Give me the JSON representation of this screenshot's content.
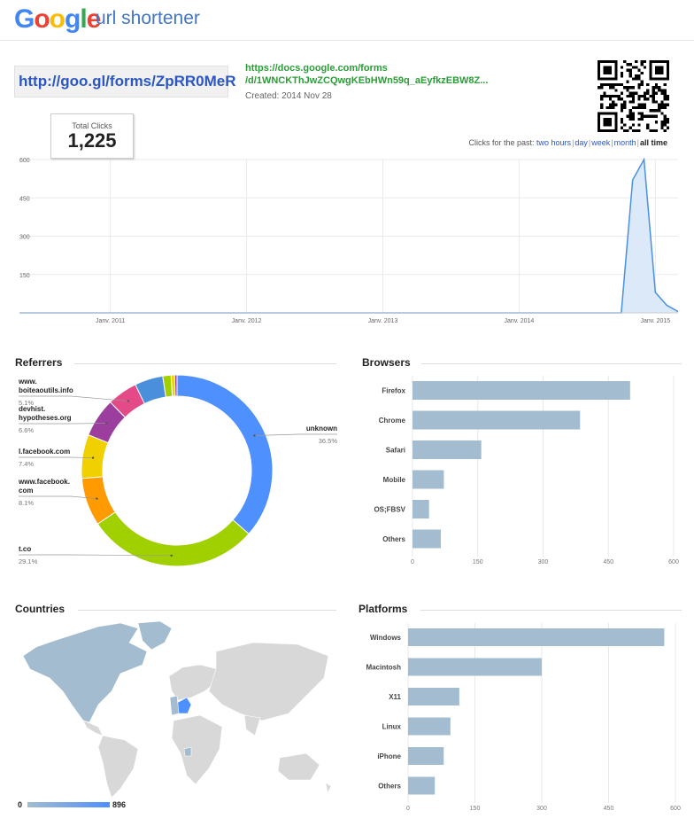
{
  "header": {
    "logo": "Google",
    "product": "url shortener"
  },
  "link": {
    "short_url": "http://goo.gl/forms/ZpRR0MeR",
    "long_url_line1": "https://docs.google.com/forms",
    "long_url_line2": "/d/1WNCKThJwZCQwgKEbHWn59q_aEyfkzEBW8Z...",
    "created": "Created: 2014 Nov 28",
    "qr_icon": "qr-code-icon"
  },
  "total": {
    "label": "Total Clicks",
    "value": "1,225"
  },
  "period": {
    "prefix": "Clicks for the past:",
    "options": [
      "two hours",
      "day",
      "week",
      "month",
      "all time"
    ],
    "active": "all time"
  },
  "sections": {
    "referrers": "Referrers",
    "browsers": "Browsers",
    "countries": "Countries",
    "platforms": "Platforms"
  },
  "chart_data": [
    {
      "type": "area",
      "x_ticks": [
        "Janv. 2011",
        "Janv. 2012",
        "Janv. 2013",
        "Janv. 2014",
        "Janv. 2015"
      ],
      "y_ticks": [
        "600",
        "450",
        "300",
        "150"
      ],
      "ylim": [
        0,
        600
      ],
      "series": [
        {
          "points": [
            {
              "x": "2010-05",
              "y": 0
            },
            {
              "x": "2014-09",
              "y": 0
            },
            {
              "x": "2014-10",
              "y": 0
            },
            {
              "x": "2014-11",
              "y": 520
            },
            {
              "x": "2014-12",
              "y": 600
            },
            {
              "x": "2015-01",
              "y": 80
            },
            {
              "x": "2015-02",
              "y": 30
            },
            {
              "x": "2015-03",
              "y": 5
            }
          ]
        }
      ],
      "color": "#4a90e2"
    },
    {
      "type": "pie",
      "title": "Referrers",
      "slices": [
        {
          "label": "unknown",
          "pct": "36.5%",
          "value": 36.5,
          "color": "#4d90fe"
        },
        {
          "label": "t.co",
          "pct": "29.1%",
          "value": 29.1,
          "color": "#a0d000"
        },
        {
          "label": "www.facebook.\ncom",
          "pct": "8.1%",
          "value": 8.1,
          "color": "#ff9a00"
        },
        {
          "label": "l.facebook.com",
          "pct": "7.4%",
          "value": 7.4,
          "color": "#f0d000"
        },
        {
          "label": "devhist.\nhypotheses.org",
          "pct": "6.6%",
          "value": 6.6,
          "color": "#9b3e9e"
        },
        {
          "label": "www.\nboiteaoutils.info",
          "pct": "5.1%",
          "value": 5.1,
          "color": "#e34a87"
        },
        {
          "label": "",
          "pct": "",
          "value": 4.8,
          "color": "#4a8fdc"
        },
        {
          "label": "",
          "pct": "",
          "value": 1.4,
          "color": "#a0d000"
        },
        {
          "label": "",
          "pct": "",
          "value": 0.6,
          "color": "#f0d000"
        },
        {
          "label": "",
          "pct": "",
          "value": 0.4,
          "color": "#9b3e9e"
        }
      ]
    },
    {
      "type": "bar",
      "title": "Browsers",
      "categories": [
        "Firefox",
        "Chrome",
        "Safari",
        "Mobile",
        "OS;FBSV",
        "Others"
      ],
      "values": [
        500,
        385,
        158,
        72,
        38,
        65
      ],
      "x_ticks": [
        "0",
        "150",
        "300",
        "450",
        "600"
      ],
      "xlim": [
        0,
        600
      ],
      "color": "#a3bccf"
    },
    {
      "type": "bar",
      "title": "Platforms",
      "categories": [
        "Windows",
        "Macintosh",
        "X11",
        "Linux",
        "iPhone",
        "Others"
      ],
      "values": [
        575,
        300,
        115,
        95,
        80,
        60
      ],
      "x_ticks": [
        "0",
        "150",
        "300",
        "450",
        "600"
      ],
      "xlim": [
        0,
        600
      ],
      "color": "#a3bccf"
    }
  ],
  "countries": {
    "legend_min": "0",
    "legend_max": "896",
    "legend_color_low": "#a3bccf",
    "legend_color_high": "#4d90fe",
    "map_icon": "world-map"
  }
}
